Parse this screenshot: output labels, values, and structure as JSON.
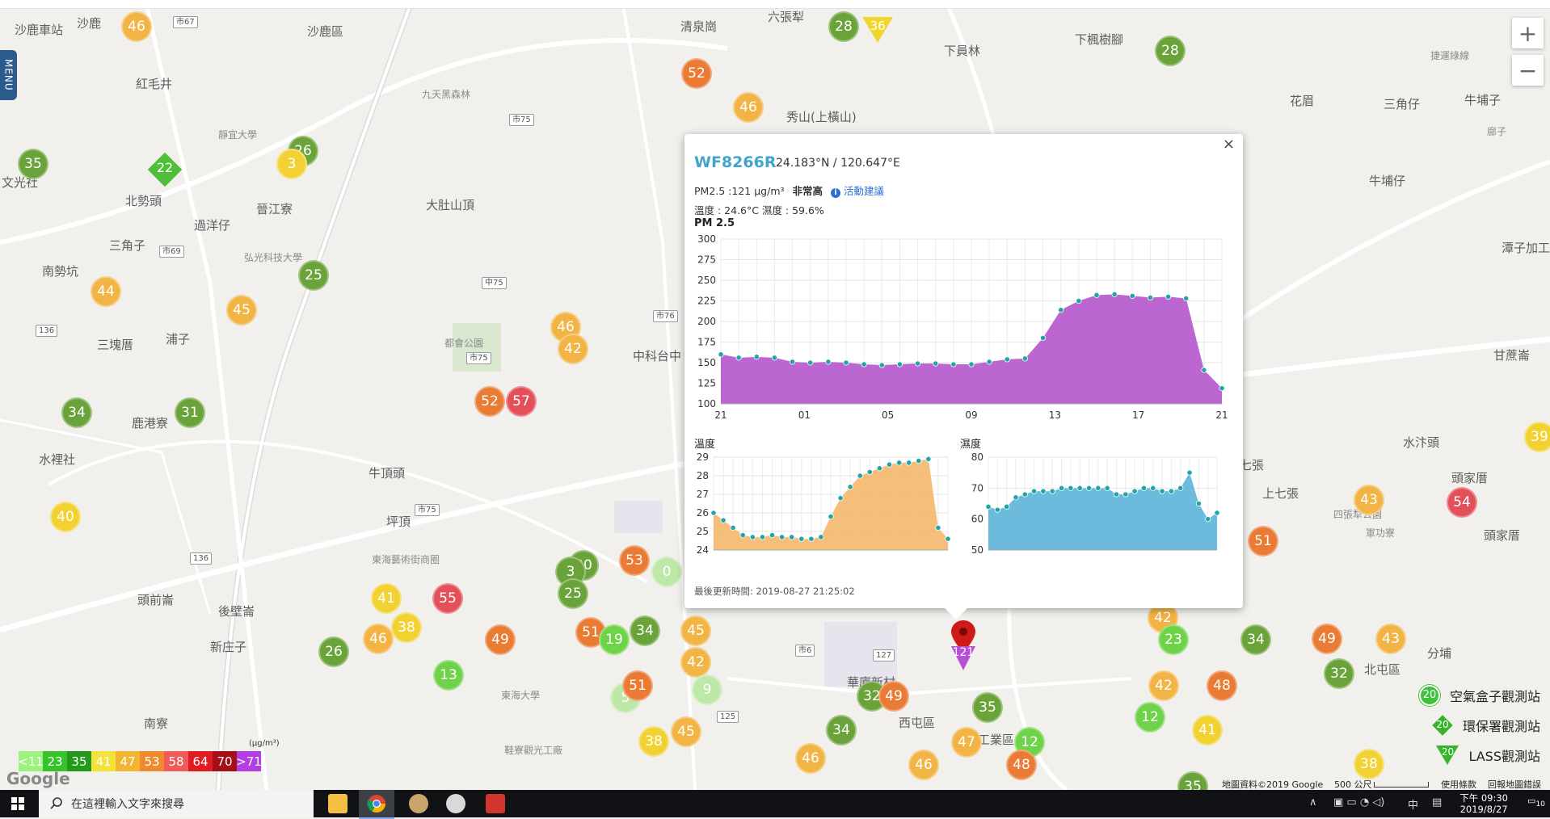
{
  "menu_label": "MENU",
  "zoom": {
    "in": "+",
    "out": "−"
  },
  "places": [
    "沙鹿區",
    "沙鹿車站",
    "沙鹿",
    "紅毛井",
    "靜宜大學",
    "晉江寮",
    "北勢頭",
    "過洋仔",
    "三角子",
    "南勢坑",
    "九天黑森林",
    "大肚山頂",
    "三塊厝",
    "浦子",
    "鹿港寮",
    "水裡社",
    "牛頂頭",
    "坪頂",
    "頭前崙",
    "後壁崙",
    "新庄子",
    "南寮",
    "都會公園",
    "東海藝術街商圈",
    "東海大學",
    "清泉崗",
    "六張犁",
    "下員林",
    "下楓樹腳",
    "秀山(上橫山)",
    "花眉",
    "三角仔",
    "牛埔子",
    "牛埔仔",
    "中科台中",
    "西屯區",
    "華廈新村",
    "北屯區",
    "分埔",
    "上七張",
    "七張",
    "頭家厝",
    "潭子加工出口區",
    "甘蔗崙",
    "水汴頭",
    "頭家厝",
    "四張犁公園",
    "軍功寮",
    "捷運綠線",
    "鞋寮觀光工廠",
    "文光社",
    "弘光科技大學",
    "中工業區",
    "廍子"
  ],
  "markers": [
    {
      "v": "46",
      "c": "orange"
    },
    {
      "v": "26",
      "c": "green"
    },
    {
      "v": "3",
      "c": "yellow"
    },
    {
      "v": "35",
      "c": "green"
    },
    {
      "v": "22",
      "c": "diamond"
    },
    {
      "v": "25",
      "c": "green"
    },
    {
      "v": "44",
      "c": "orange"
    },
    {
      "v": "45",
      "c": "orange"
    },
    {
      "v": "34",
      "c": "green"
    },
    {
      "v": "31",
      "c": "green"
    },
    {
      "v": "40",
      "c": "yellow"
    },
    {
      "v": "46",
      "c": "orange"
    },
    {
      "v": "42",
      "c": "orange"
    },
    {
      "v": "57",
      "c": "red"
    },
    {
      "v": "52",
      "c": "dorange"
    },
    {
      "v": "28",
      "c": "green"
    },
    {
      "v": "36",
      "c": "triangle"
    },
    {
      "v": "52",
      "c": "dorange"
    },
    {
      "v": "46",
      "c": "orange"
    },
    {
      "v": "28",
      "c": "green"
    },
    {
      "v": "30",
      "c": "green"
    },
    {
      "v": "3",
      "c": "green"
    },
    {
      "v": "25",
      "c": "green"
    },
    {
      "v": "53",
      "c": "dorange"
    },
    {
      "v": "0",
      "c": "pale"
    },
    {
      "v": "41",
      "c": "yellow"
    },
    {
      "v": "55",
      "c": "red"
    },
    {
      "v": "38",
      "c": "yellow"
    },
    {
      "v": "46",
      "c": "orange"
    },
    {
      "v": "49",
      "c": "dorange"
    },
    {
      "v": "26",
      "c": "green"
    },
    {
      "v": "13",
      "c": "lgreen"
    },
    {
      "v": "51",
      "c": "dorange"
    },
    {
      "v": "19",
      "c": "lgreen"
    },
    {
      "v": "34",
      "c": "green"
    },
    {
      "v": "45",
      "c": "orange"
    },
    {
      "v": "42",
      "c": "orange"
    },
    {
      "v": "9",
      "c": "pale"
    },
    {
      "v": "5",
      "c": "pale"
    },
    {
      "v": "51",
      "c": "dorange"
    },
    {
      "v": "38",
      "c": "yellow"
    },
    {
      "v": "45",
      "c": "orange"
    },
    {
      "v": "32",
      "c": "green"
    },
    {
      "v": "49",
      "c": "dorange"
    },
    {
      "v": "34",
      "c": "green"
    },
    {
      "v": "35",
      "c": "green"
    },
    {
      "v": "47",
      "c": "orange"
    },
    {
      "v": "12",
      "c": "lgreen"
    },
    {
      "v": "46",
      "c": "orange"
    },
    {
      "v": "48",
      "c": "dorange"
    },
    {
      "v": "42",
      "c": "orange"
    },
    {
      "v": "23",
      "c": "lgreen"
    },
    {
      "v": "34",
      "c": "green"
    },
    {
      "v": "42",
      "c": "orange"
    },
    {
      "v": "48",
      "c": "dorange"
    },
    {
      "v": "12",
      "c": "lgreen"
    },
    {
      "v": "41",
      "c": "yellow"
    },
    {
      "v": "49",
      "c": "dorange"
    },
    {
      "v": "32",
      "c": "green"
    },
    {
      "v": "43",
      "c": "orange"
    },
    {
      "v": "43",
      "c": "orange"
    },
    {
      "v": "54",
      "c": "red"
    },
    {
      "v": "51",
      "c": "dorange"
    },
    {
      "v": "35",
      "c": "green"
    },
    {
      "v": "38",
      "c": "yellow"
    },
    {
      "v": "46",
      "c": "orange"
    },
    {
      "v": "39",
      "c": "yellow"
    },
    {
      "v": "121",
      "c": "purple-triangle"
    }
  ],
  "popup": {
    "station": "WF8266R",
    "coord": "24.183°N / 120.647°E",
    "pm_text": "PM2.5 :121 μg/m³",
    "level": "非常高",
    "advice": "活動建議",
    "temp_humid": "溫度 : 24.6°C 濕度 : 59.6%",
    "pm_title": "PM 2.5",
    "temp_title": "溫度",
    "humid_title": "濕度",
    "updated": "最後更新時間: 2019-08-27 21:25:02",
    "close": "×"
  },
  "chart_data": [
    {
      "type": "area",
      "title": "PM 2.5",
      "color": "#b85fcf",
      "x_ticks": [
        "21",
        "01",
        "05",
        "09",
        "13",
        "17",
        "21"
      ],
      "ylim": [
        100,
        300
      ],
      "y_ticks": [
        100,
        125,
        150,
        175,
        200,
        225,
        250,
        275,
        300
      ],
      "values": [
        160,
        156,
        157,
        156,
        151,
        150,
        151,
        150,
        148,
        147,
        148,
        149,
        149,
        148,
        148,
        151,
        154,
        155,
        180,
        214,
        225,
        232,
        233,
        231,
        229,
        230,
        228,
        141,
        119
      ]
    },
    {
      "type": "area",
      "title": "溫度",
      "color": "#f4ba74",
      "ylim": [
        24,
        29
      ],
      "y_ticks": [
        24,
        25,
        26,
        27,
        28,
        29
      ],
      "values": [
        26.0,
        25.6,
        25.2,
        24.8,
        24.7,
        24.7,
        24.8,
        24.7,
        24.7,
        24.6,
        24.6,
        24.7,
        25.8,
        26.8,
        27.4,
        28.0,
        28.2,
        28.4,
        28.6,
        28.7,
        28.7,
        28.8,
        28.9,
        25.2,
        24.6
      ]
    },
    {
      "type": "area",
      "title": "濕度",
      "color": "#64b7da",
      "ylim": [
        50,
        80
      ],
      "y_ticks": [
        50,
        60,
        70,
        80
      ],
      "values": [
        64,
        63,
        64,
        67,
        68,
        69,
        69,
        69,
        70,
        70,
        70,
        70,
        70,
        70,
        68,
        68,
        69,
        70,
        70,
        69,
        69,
        70,
        75,
        65,
        60,
        62
      ]
    }
  ],
  "legend": [
    {
      "label": "空氣盒子觀測站",
      "value": "20"
    },
    {
      "label": "環保署觀測站",
      "value": "20"
    },
    {
      "label": "LASS觀測站",
      "value": "20"
    }
  ],
  "scale": [
    {
      "label": "<11",
      "color": "#9cf27f"
    },
    {
      "label": "23",
      "color": "#36c32a"
    },
    {
      "label": "35",
      "color": "#239a1b"
    },
    {
      "label": "41",
      "color": "#f3e23a"
    },
    {
      "label": "47",
      "color": "#f2b532"
    },
    {
      "label": "53",
      "color": "#ef8b2e"
    },
    {
      "label": "58",
      "color": "#ee5b58"
    },
    {
      "label": "64",
      "color": "#e01b22"
    },
    {
      "label": "70",
      "color": "#a51018"
    },
    {
      "label": ">71",
      "color": "#b53ee3"
    }
  ],
  "scale_unit": "(μg/m³)",
  "attribution": {
    "data": "地圖資料©2019 Google",
    "scale": "500 公尺",
    "terms": "使用條款",
    "report": "回報地圖錯誤"
  },
  "google": "Google",
  "taskbar": {
    "search": "在這裡輸入文字來搜尋",
    "time": "下午 09:30",
    "date": "2019/8/27",
    "lang": "中",
    "notif": "10"
  }
}
